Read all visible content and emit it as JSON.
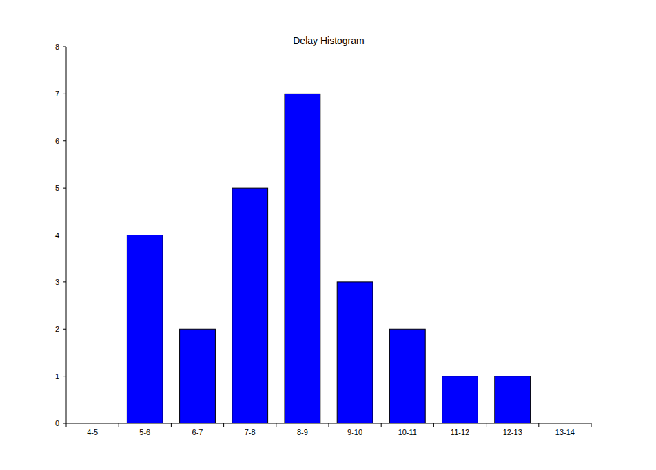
{
  "chart_data": {
    "type": "bar",
    "title": "Delay Histogram",
    "categories": [
      "4-5",
      "5-6",
      "6-7",
      "7-8",
      "8-9",
      "9-10",
      "10-11",
      "11-12",
      "12-13",
      "13-14"
    ],
    "values": [
      0,
      4,
      2,
      5,
      7,
      3,
      2,
      1,
      1,
      0
    ],
    "color": "#0000ff",
    "ylim": [
      0,
      8
    ],
    "yticks": [
      0,
      1,
      2,
      3,
      4,
      5,
      6,
      7,
      8
    ],
    "grid": false
  }
}
